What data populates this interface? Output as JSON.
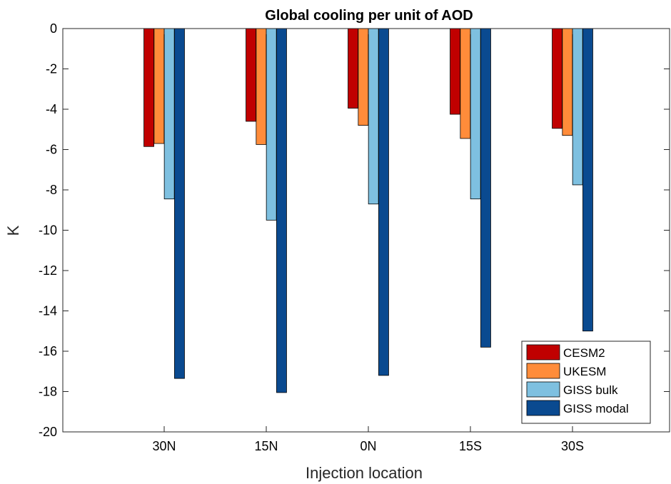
{
  "chart_data": {
    "type": "bar",
    "title": "Global cooling per unit of AOD",
    "xlabel": "Injection location",
    "ylabel": "K",
    "categories": [
      "30N",
      "15N",
      "0N",
      "15S",
      "30S"
    ],
    "ylim": [
      -20,
      0
    ],
    "yticks": [
      "0",
      "-2",
      "-4",
      "-6",
      "-8",
      "-10",
      "-12",
      "-14",
      "-16",
      "-18",
      "-20"
    ],
    "legend_position": "bottom-right",
    "grid": false,
    "series": [
      {
        "name": "CESM2",
        "color": "#c00000",
        "values": [
          -5.85,
          -4.6,
          -3.95,
          -4.25,
          -4.95
        ]
      },
      {
        "name": "UKESM",
        "color": "#ff8c3a",
        "values": [
          -5.7,
          -5.75,
          -4.8,
          -5.45,
          -5.3
        ]
      },
      {
        "name": "GISS bulk",
        "color": "#7ec0e0",
        "values": [
          -8.45,
          -9.5,
          -8.7,
          -8.45,
          -7.75
        ]
      },
      {
        "name": "GISS modal",
        "color": "#0a4a90",
        "values": [
          -17.35,
          -18.05,
          -17.2,
          -15.8,
          -15.0
        ]
      }
    ]
  }
}
